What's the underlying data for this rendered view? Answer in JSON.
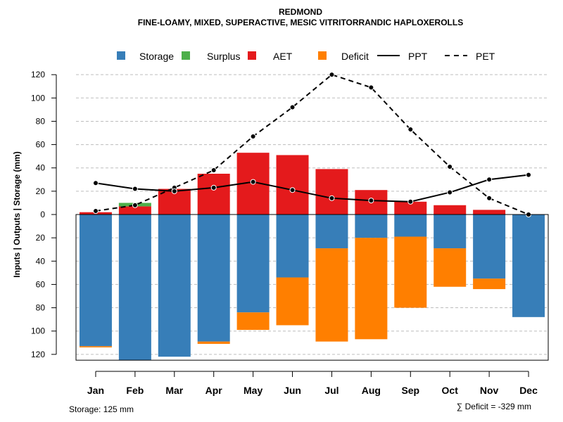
{
  "chart_data": {
    "type": "bar",
    "title": "REDMOND",
    "subtitle": "FINE-LOAMY, MIXED, SUPERACTIVE, MESIC VITRITORRANDIC HAPLOXEROLLS",
    "ylabel": "Inputs | Outputs | Storage    (mm)",
    "ylim": [
      -125,
      120
    ],
    "y_ticks": [
      120,
      100,
      80,
      60,
      40,
      20,
      0,
      20,
      40,
      60,
      80,
      100,
      120
    ],
    "categories": [
      "Jan",
      "Feb",
      "Mar",
      "Apr",
      "May",
      "Jun",
      "Jul",
      "Aug",
      "Sep",
      "Oct",
      "Nov",
      "Dec"
    ],
    "legend": [
      {
        "label": "Storage",
        "color": "#377EB8",
        "kind": "box"
      },
      {
        "label": "Surplus",
        "color": "#4DAF4A",
        "kind": "box"
      },
      {
        "label": "AET",
        "color": "#E41A1C",
        "kind": "box"
      },
      {
        "label": "Deficit",
        "color": "#FF7F00",
        "kind": "box"
      },
      {
        "label": "PPT",
        "color": "#000000",
        "kind": "solid"
      },
      {
        "label": "PET",
        "color": "#000000",
        "kind": "dashed"
      }
    ],
    "series": [
      {
        "name": "AET",
        "values": [
          2,
          7,
          22,
          35,
          53,
          51,
          39,
          21,
          11,
          8,
          4,
          0
        ]
      },
      {
        "name": "Surplus",
        "values": [
          0,
          3,
          0,
          0,
          0,
          0,
          0,
          0,
          0,
          0,
          0,
          0
        ]
      },
      {
        "name": "Storage",
        "values": [
          113,
          125,
          122,
          109,
          84,
          54,
          29,
          20,
          19,
          29,
          55,
          88
        ]
      },
      {
        "name": "Deficit",
        "values": [
          1,
          0,
          0,
          2,
          15,
          41,
          80,
          87,
          61,
          33,
          9,
          0
        ]
      },
      {
        "name": "PPT",
        "values": [
          27,
          22,
          20,
          23,
          28,
          21,
          14,
          12,
          11,
          19,
          30,
          34
        ]
      },
      {
        "name": "PET",
        "values": [
          3,
          8,
          23,
          38,
          67,
          92,
          120,
          109,
          73,
          41,
          14,
          0
        ]
      }
    ],
    "grid": true,
    "legend_position": "top"
  },
  "footer": {
    "storage_note": "Storage: 125 mm",
    "deficit_note": "∑ Deficit = -329 mm"
  }
}
